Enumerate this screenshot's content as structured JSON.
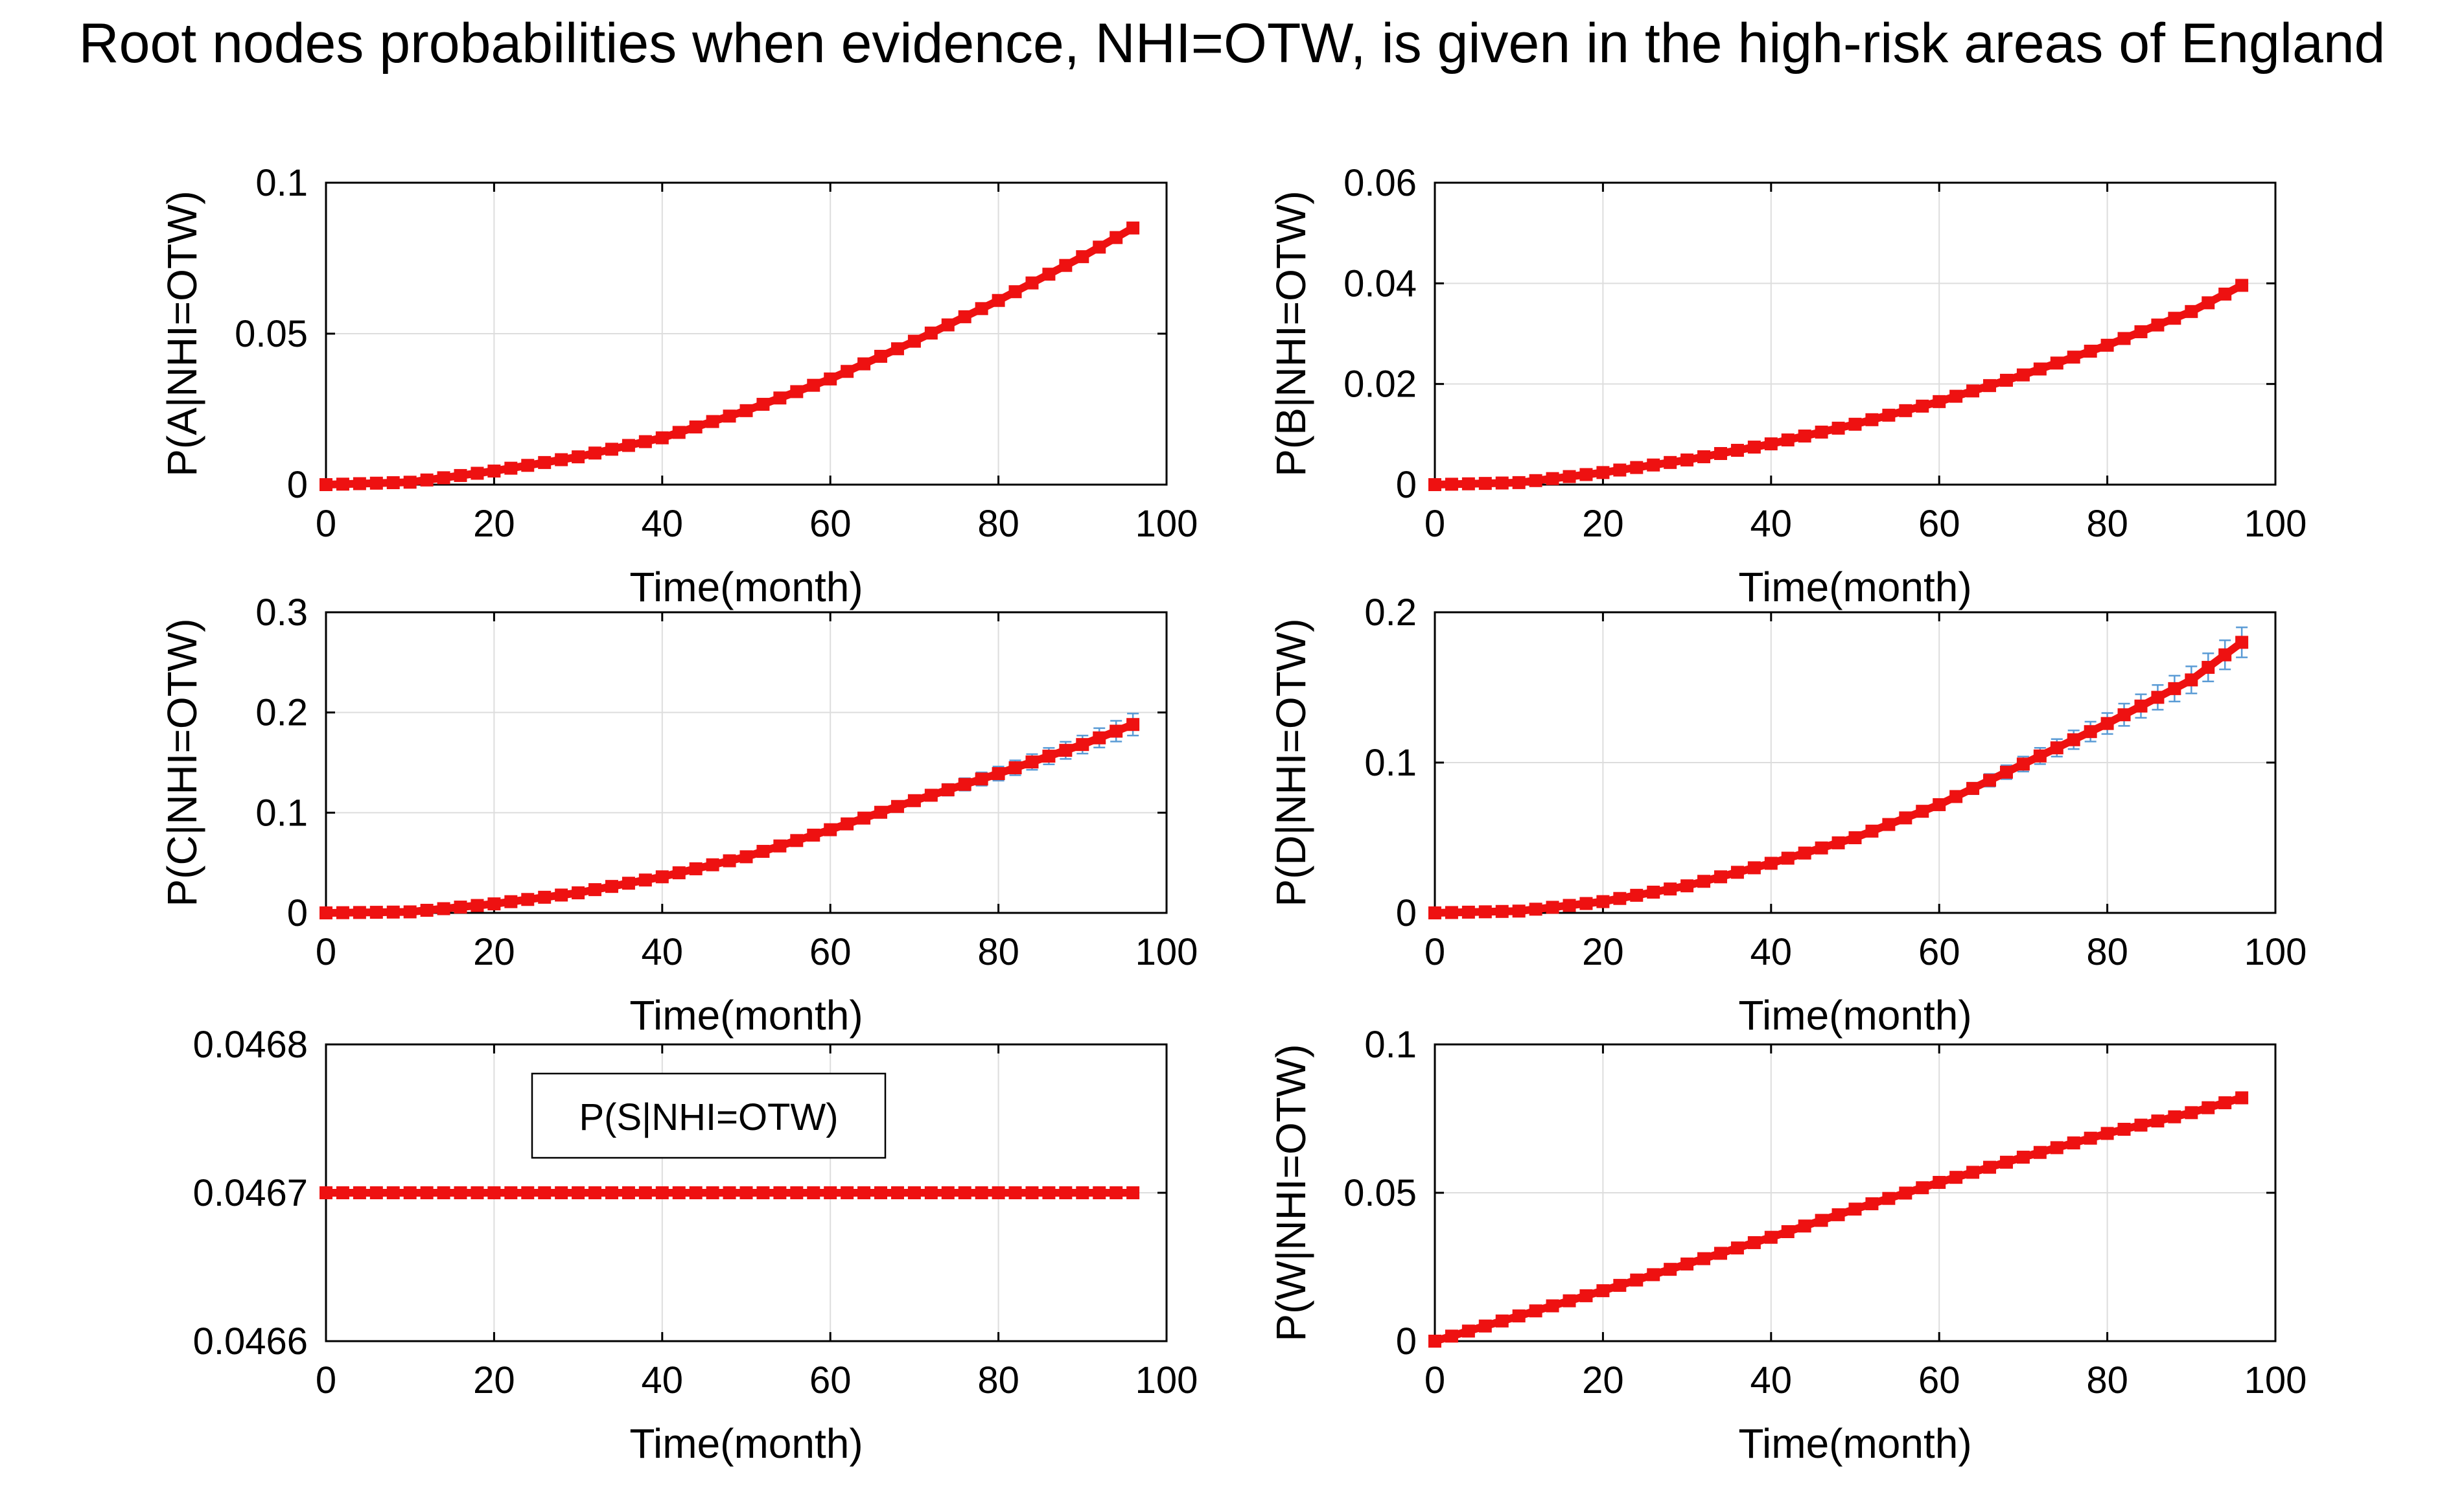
{
  "figure": {
    "title": "Root nodes probabilities when evidence, NHI=OTW, is given in the high-risk areas of England"
  },
  "colors": {
    "series": "#ee1111",
    "error_bar": "#5a9bd5",
    "grid": "#dddddd",
    "axis": "#000000"
  },
  "chart_data": [
    {
      "type": "line",
      "panel": "top-left",
      "title": "",
      "xlabel": "Time(month)",
      "ylabel": "P(A|NHI=OTW)",
      "xlim": [
        0,
        100
      ],
      "ylim": [
        0,
        0.1
      ],
      "xticks": [
        0,
        20,
        40,
        60,
        80,
        100
      ],
      "yticks": [
        0,
        0.05,
        0.1
      ],
      "ytick_labels": [
        "0",
        "0.05",
        "0.1"
      ],
      "grid": true,
      "x": [
        0,
        10,
        20,
        30,
        40,
        50,
        60,
        70,
        80,
        90,
        96
      ],
      "values": [
        0.0,
        0.0008,
        0.0045,
        0.0092,
        0.0155,
        0.0245,
        0.035,
        0.0475,
        0.061,
        0.0755,
        0.085
      ],
      "error": [
        0,
        0,
        0.0002,
        0.0003,
        0.0004,
        0.0005,
        0.0006,
        0.0008,
        0.001,
        0.0012,
        0.0014
      ]
    },
    {
      "type": "line",
      "panel": "top-right",
      "title": "",
      "xlabel": "Time(month)",
      "ylabel": "P(B|NHI=OTW)",
      "xlim": [
        0,
        100
      ],
      "ylim": [
        0,
        0.06
      ],
      "xticks": [
        0,
        20,
        40,
        60,
        80,
        100
      ],
      "yticks": [
        0,
        0.02,
        0.04,
        0.06
      ],
      "ytick_labels": [
        "0",
        "0.02",
        "0.04",
        "0.06"
      ],
      "grid": true,
      "x": [
        0,
        10,
        20,
        30,
        40,
        50,
        60,
        70,
        80,
        90,
        96
      ],
      "values": [
        0.0,
        0.0004,
        0.0024,
        0.0049,
        0.0081,
        0.012,
        0.0165,
        0.0218,
        0.0277,
        0.0344,
        0.0396
      ],
      "error": [
        0,
        0,
        0.0001,
        0.0002,
        0.0002,
        0.0003,
        0.0004,
        0.0005,
        0.0006,
        0.0007,
        0.0008
      ]
    },
    {
      "type": "line",
      "panel": "middle-left",
      "title": "",
      "xlabel": "Time(month)",
      "ylabel": "P(C|NHI=OTW)",
      "xlim": [
        0,
        100
      ],
      "ylim": [
        0,
        0.3
      ],
      "xticks": [
        0,
        20,
        40,
        60,
        80,
        100
      ],
      "yticks": [
        0,
        0.1,
        0.2,
        0.3
      ],
      "ytick_labels": [
        "0",
        "0.1",
        "0.2",
        "0.3"
      ],
      "grid": true,
      "x": [
        0,
        10,
        20,
        30,
        40,
        50,
        60,
        70,
        80,
        90,
        96
      ],
      "values": [
        0.0,
        0.001,
        0.009,
        0.02,
        0.036,
        0.056,
        0.083,
        0.112,
        0.139,
        0.168,
        0.188
      ],
      "error": [
        0,
        0,
        0.0005,
        0.001,
        0.0015,
        0.002,
        0.003,
        0.005,
        0.007,
        0.009,
        0.011
      ]
    },
    {
      "type": "line",
      "panel": "middle-right",
      "title": "",
      "xlabel": "Time(month)",
      "ylabel": "P(D|NHI=OTW)",
      "xlim": [
        0,
        100
      ],
      "ylim": [
        0,
        0.2
      ],
      "xticks": [
        0,
        20,
        40,
        60,
        80,
        100
      ],
      "yticks": [
        0,
        0.1,
        0.2
      ],
      "ytick_labels": [
        "0",
        "0.1",
        "0.2"
      ],
      "grid": true,
      "x": [
        0,
        10,
        20,
        30,
        40,
        50,
        60,
        70,
        80,
        90,
        96
      ],
      "values": [
        0.0,
        0.0012,
        0.0075,
        0.018,
        0.033,
        0.05,
        0.072,
        0.099,
        0.126,
        0.155,
        0.18
      ],
      "error": [
        0,
        0,
        0.0005,
        0.001,
        0.0015,
        0.002,
        0.003,
        0.005,
        0.007,
        0.009,
        0.01
      ]
    },
    {
      "type": "line",
      "panel": "bottom-left",
      "title": "",
      "xlabel": "Time(month)",
      "ylabel": "",
      "legend": "P(S|NHI=OTW)",
      "legend_position": "top-center",
      "xlim": [
        0,
        100
      ],
      "ylim": [
        0.0466,
        0.0468
      ],
      "xticks": [
        0,
        20,
        40,
        60,
        80,
        100
      ],
      "yticks": [
        0.0466,
        0.0467,
        0.0468
      ],
      "ytick_labels": [
        "0.0466",
        "0.0467",
        "0.0468"
      ],
      "grid": true,
      "x": [
        0,
        10,
        20,
        30,
        40,
        50,
        60,
        70,
        80,
        90,
        96
      ],
      "values": [
        0.0467,
        0.0467,
        0.0467,
        0.0467,
        0.0467,
        0.0467,
        0.0467,
        0.0467,
        0.0467,
        0.0467,
        0.0467
      ],
      "error": [
        0,
        0,
        0,
        0,
        0,
        0,
        0,
        0,
        0,
        0,
        0
      ]
    },
    {
      "type": "line",
      "panel": "bottom-right",
      "title": "",
      "xlabel": "Time(month)",
      "ylabel": "P(W|NHI=OTW)",
      "xlim": [
        0,
        100
      ],
      "ylim": [
        0,
        0.1
      ],
      "xticks": [
        0,
        20,
        40,
        60,
        80,
        100
      ],
      "yticks": [
        0,
        0.05,
        0.1
      ],
      "ytick_labels": [
        "0",
        "0.05",
        "0.1"
      ],
      "grid": true,
      "x": [
        0,
        10,
        20,
        30,
        40,
        50,
        60,
        70,
        80,
        90,
        96
      ],
      "values": [
        0.0,
        0.0085,
        0.017,
        0.026,
        0.035,
        0.0445,
        0.0535,
        0.062,
        0.07,
        0.077,
        0.082
      ],
      "error": [
        0,
        0.0002,
        0.0003,
        0.0004,
        0.0005,
        0.0006,
        0.0007,
        0.0008,
        0.0008,
        0.0009,
        0.001
      ]
    }
  ]
}
